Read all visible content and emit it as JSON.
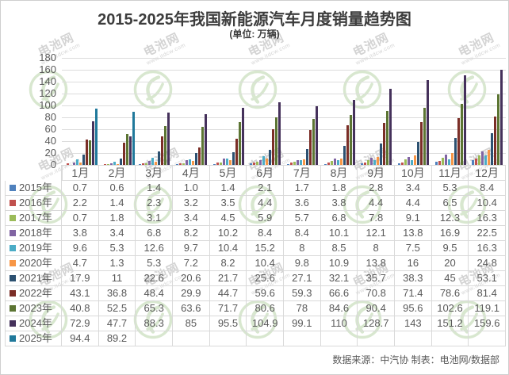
{
  "title": "2015-2025年我国新能源汽车月度销量趋势图",
  "subtitle": "(单位: 万辆)",
  "source_note": "数据来源：中汽协  制表：电池网/数据部",
  "watermark": {
    "text": "电池网",
    "subtext": "www.itdcw.com"
  },
  "chart_data": {
    "type": "bar",
    "title": "2015-2025年我国新能源汽车月度销量趋势图",
    "unit": "万辆",
    "xlabel": "",
    "ylabel": "",
    "ylim": [
      0,
      180
    ],
    "ytick_step": 20,
    "grid": true,
    "legend_position": "table-left-column",
    "categories": [
      "1月",
      "2月",
      "3月",
      "4月",
      "5月",
      "6月",
      "7月",
      "8月",
      "9月",
      "10月",
      "11月",
      "12月"
    ],
    "series": [
      {
        "name": "2015年",
        "color": "#4F81BD",
        "values": [
          0.7,
          0.6,
          1.4,
          1.0,
          1.4,
          2.1,
          1.7,
          1.8,
          2.8,
          3.4,
          5.3,
          8.4
        ],
        "display": [
          "0.7",
          "0.6",
          "1.4",
          "1.0",
          "1.4",
          "2.1",
          "1.7",
          "1.8",
          "2.8",
          "3.4",
          "5.3",
          "8.4"
        ]
      },
      {
        "name": "2016年",
        "color": "#C0504D",
        "values": [
          2.2,
          1.4,
          2.3,
          3.2,
          3.5,
          4.4,
          3.6,
          3.8,
          4.4,
          4.4,
          6.5,
          10.4
        ]
      },
      {
        "name": "2017年",
        "color": "#9BBB59",
        "values": [
          0.7,
          1.8,
          3.1,
          3.4,
          4.5,
          5.9,
          5.7,
          6.8,
          7.8,
          9.1,
          12.3,
          16.3
        ]
      },
      {
        "name": "2018年",
        "color": "#8064A2",
        "values": [
          3.8,
          3.4,
          6.8,
          8.2,
          10.2,
          8.4,
          8.4,
          10.1,
          12.1,
          13.8,
          16.9,
          22.5
        ]
      },
      {
        "name": "2019年",
        "color": "#4BACC6",
        "values": [
          9.6,
          5.3,
          12.6,
          9.7,
          10.4,
          15.2,
          8,
          8.5,
          8,
          7.5,
          9.5,
          16.3
        ]
      },
      {
        "name": "2020年",
        "color": "#F79646",
        "values": [
          4.7,
          1.3,
          5.3,
          7.2,
          8.2,
          10.4,
          9.8,
          10.9,
          13.8,
          16,
          20,
          24.8
        ]
      },
      {
        "name": "2021年",
        "color": "#2C5171",
        "values": [
          17.9,
          11,
          22.6,
          20.6,
          21.7,
          25.6,
          27.1,
          32.1,
          35.7,
          38.3,
          45,
          53.1
        ]
      },
      {
        "name": "2022年",
        "color": "#7B2E27",
        "values": [
          43.1,
          36.8,
          48.4,
          29.9,
          44.7,
          59.6,
          59.3,
          66.6,
          70.8,
          71.4,
          78.6,
          81.4
        ]
      },
      {
        "name": "2023年",
        "color": "#5C7533",
        "values": [
          40.8,
          52.5,
          65.3,
          63.6,
          71.7,
          80.6,
          78,
          84.6,
          90.4,
          95.6,
          102.6,
          119.1
        ]
      },
      {
        "name": "2024年",
        "color": "#45315B",
        "values": [
          72.9,
          47.7,
          88.3,
          85,
          95.5,
          104.9,
          99.1,
          110,
          128.7,
          143,
          151.2,
          159.6
        ]
      },
      {
        "name": "2025年",
        "color": "#20799B",
        "values": [
          94.4,
          89.2,
          null,
          null,
          null,
          null,
          null,
          null,
          null,
          null,
          null,
          null
        ]
      }
    ]
  }
}
